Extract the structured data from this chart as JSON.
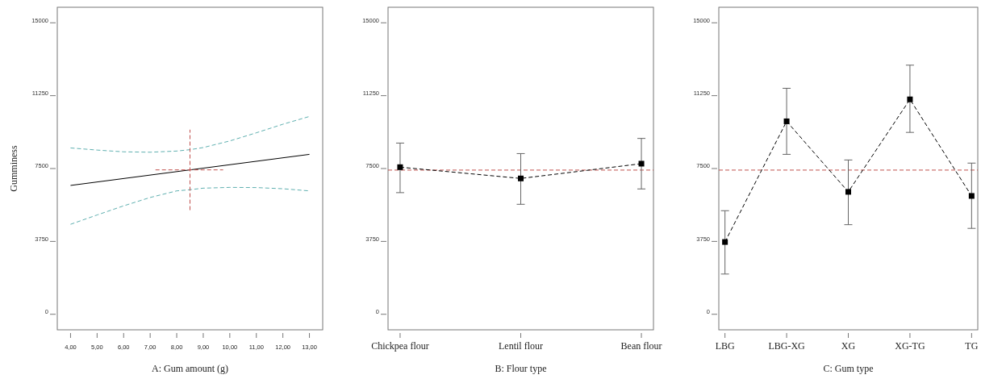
{
  "chart_data": [
    {
      "type": "line",
      "xlabel": "A: Gum amount (g)",
      "ylabel": "Gumminess",
      "xlim": [
        3.5,
        13.5
      ],
      "ylim": [
        -800,
        15800
      ],
      "xticks": [
        {
          "value": 4,
          "label": "4,00"
        },
        {
          "value": 5,
          "label": "5,00"
        },
        {
          "value": 6,
          "label": "6,00"
        },
        {
          "value": 7,
          "label": "7,00"
        },
        {
          "value": 8,
          "label": "8,00"
        },
        {
          "value": 9,
          "label": "9,00"
        },
        {
          "value": 10,
          "label": "10,00"
        },
        {
          "value": 11,
          "label": "11,00"
        },
        {
          "value": 12,
          "label": "12,00"
        },
        {
          "value": 13,
          "label": "13,00"
        }
      ],
      "yticks": [
        0,
        3750,
        7500,
        11250,
        15000
      ],
      "series": [
        {
          "color": "#000000",
          "line_style": "solid",
          "x": [
            4,
            8.5,
            13
          ],
          "values": [
            6630,
            7430,
            8230
          ]
        },
        {
          "color": "#5fb0b0",
          "line_style": "dashed",
          "x": [
            4,
            5,
            6,
            7,
            8,
            8.5,
            9,
            10,
            11,
            12,
            13
          ],
          "values": [
            8560,
            8450,
            8360,
            8340,
            8400,
            8470,
            8580,
            8920,
            9340,
            9780,
            10180
          ]
        },
        {
          "color": "#5fb0b0",
          "line_style": "dashed",
          "x": [
            4,
            5,
            6,
            7,
            8,
            8.5,
            9,
            10,
            11,
            12,
            13
          ],
          "values": [
            4630,
            5110,
            5580,
            6010,
            6350,
            6410,
            6490,
            6530,
            6520,
            6460,
            6350
          ]
        },
        {
          "color": "#c0504d",
          "line_style": "dashed",
          "x": [
            8.5,
            8.5
          ],
          "values": [
            5360,
            9500
          ]
        },
        {
          "color": "#c0504d",
          "line_style": "dashed",
          "x": [
            7.2,
            9.75
          ],
          "values": [
            7430,
            7430
          ]
        }
      ]
    },
    {
      "type": "line",
      "xlabel": "B: Flour type",
      "categories": [
        "Chickpea flour",
        "Lentil flour",
        "Bean flour"
      ],
      "ylim": [
        -800,
        15800
      ],
      "yticks": [
        0,
        3750,
        7500,
        11250,
        15000
      ],
      "ref_lines": [
        {
          "axis": "y",
          "value": 7420,
          "color": "#c0504d",
          "line_style": "dashed"
        }
      ],
      "series": [
        {
          "color": "#000000",
          "line_style": "dashed",
          "marker": "square",
          "values": [
            7570,
            6990,
            7750
          ],
          "errors": [
            [
              6260,
              8810
            ],
            [
              5660,
              8270
            ],
            [
              6450,
              9050
            ]
          ]
        }
      ]
    },
    {
      "type": "line",
      "xlabel": "C: Gum type",
      "categories": [
        "LBG",
        "LBG-XG",
        "XG",
        "XG-TG",
        "TG"
      ],
      "ylim": [
        -800,
        15800
      ],
      "yticks": [
        0,
        3750,
        7500,
        11250,
        15000
      ],
      "ref_lines": [
        {
          "axis": "y",
          "value": 7420,
          "color": "#c0504d",
          "line_style": "dashed"
        }
      ],
      "series": [
        {
          "color": "#000000",
          "line_style": "dashed",
          "marker": "square",
          "values": [
            3720,
            9930,
            6300,
            11060,
            6090
          ],
          "errors": [
            [
              2070,
              5330
            ],
            [
              8230,
              11630
            ],
            [
              4610,
              7940
            ],
            [
              9360,
              12820
            ],
            [
              4420,
              7780
            ]
          ]
        }
      ]
    }
  ]
}
